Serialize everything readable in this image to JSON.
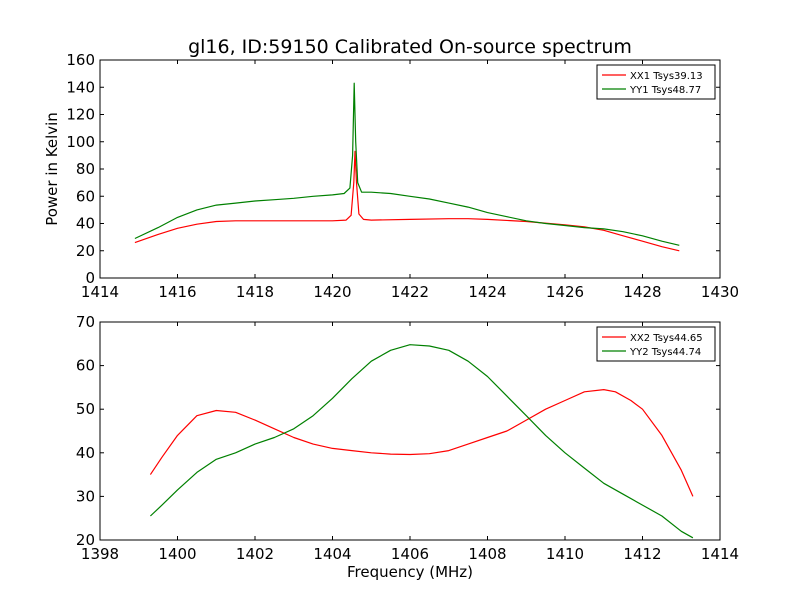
{
  "title": "gl16, ID:59150 Calibrated On-source spectrum",
  "chart_data": [
    {
      "type": "line",
      "title": "gl16, ID:59150 Calibrated On-source spectrum",
      "xlabel": "",
      "ylabel": "Power in Kelvin",
      "xlim": [
        1414,
        1430
      ],
      "ylim": [
        0,
        160
      ],
      "xticks": [
        1414,
        1416,
        1418,
        1420,
        1422,
        1424,
        1426,
        1428,
        1430
      ],
      "yticks": [
        0,
        20,
        40,
        60,
        80,
        100,
        120,
        140,
        160
      ],
      "grid": false,
      "legend_position": "top-right",
      "series": [
        {
          "name": "XX1 Tsys39.13",
          "color": "#ff0000",
          "points": [
            [
              1414.9,
              26
            ],
            [
              1415.5,
              32
            ],
            [
              1416,
              36.5
            ],
            [
              1416.5,
              39.5
            ],
            [
              1417,
              41.5
            ],
            [
              1417.5,
              42
            ],
            [
              1418,
              42
            ],
            [
              1419,
              42
            ],
            [
              1420,
              42
            ],
            [
              1420.35,
              42.5
            ],
            [
              1420.48,
              46
            ],
            [
              1420.55,
              70
            ],
            [
              1420.58,
              93
            ],
            [
              1420.62,
              70
            ],
            [
              1420.68,
              47
            ],
            [
              1420.8,
              43
            ],
            [
              1421,
              42.5
            ],
            [
              1422,
              43
            ],
            [
              1423,
              43.5
            ],
            [
              1423.5,
              43.5
            ],
            [
              1424,
              43
            ],
            [
              1425,
              41.5
            ],
            [
              1426,
              39
            ],
            [
              1426.5,
              37.5
            ],
            [
              1427,
              35
            ],
            [
              1427.5,
              31
            ],
            [
              1428,
              27
            ],
            [
              1428.5,
              23
            ],
            [
              1428.95,
              20
            ]
          ]
        },
        {
          "name": "YY1 Tsys48.77",
          "color": "#008000",
          "points": [
            [
              1414.9,
              29
            ],
            [
              1415.5,
              37
            ],
            [
              1416,
              44.5
            ],
            [
              1416.5,
              50
            ],
            [
              1417,
              53.5
            ],
            [
              1417.5,
              55
            ],
            [
              1418,
              56.5
            ],
            [
              1418.5,
              57.5
            ],
            [
              1419,
              58.5
            ],
            [
              1419.5,
              60
            ],
            [
              1420,
              61
            ],
            [
              1420.3,
              62
            ],
            [
              1420.45,
              66
            ],
            [
              1420.52,
              90
            ],
            [
              1420.56,
              143
            ],
            [
              1420.6,
              100
            ],
            [
              1420.65,
              70
            ],
            [
              1420.75,
              63
            ],
            [
              1421,
              63
            ],
            [
              1421.5,
              62
            ],
            [
              1422,
              60
            ],
            [
              1422.5,
              58
            ],
            [
              1423,
              55
            ],
            [
              1423.5,
              52
            ],
            [
              1424,
              48
            ],
            [
              1424.5,
              45
            ],
            [
              1425,
              42
            ],
            [
              1425.5,
              40
            ],
            [
              1426,
              38.5
            ],
            [
              1426.5,
              37
            ],
            [
              1427,
              36
            ],
            [
              1427.5,
              34
            ],
            [
              1428,
              31
            ],
            [
              1428.5,
              27
            ],
            [
              1428.95,
              24
            ]
          ]
        }
      ]
    },
    {
      "type": "line",
      "title": "",
      "xlabel": "Frequency (MHz)",
      "ylabel": "",
      "xlim": [
        1398,
        1414
      ],
      "ylim": [
        20,
        70
      ],
      "xticks": [
        1398,
        1400,
        1402,
        1404,
        1406,
        1408,
        1410,
        1412,
        1414
      ],
      "yticks": [
        20,
        30,
        40,
        50,
        60,
        70
      ],
      "grid": false,
      "legend_position": "top-right",
      "series": [
        {
          "name": "XX2 Tsys44.65",
          "color": "#ff0000",
          "points": [
            [
              1399.3,
              35
            ],
            [
              1399.6,
              39
            ],
            [
              1400,
              44
            ],
            [
              1400.5,
              48.5
            ],
            [
              1401,
              49.7
            ],
            [
              1401.5,
              49.3
            ],
            [
              1402,
              47.5
            ],
            [
              1402.5,
              45.5
            ],
            [
              1403,
              43.5
            ],
            [
              1403.5,
              42
            ],
            [
              1404,
              41
            ],
            [
              1404.5,
              40.5
            ],
            [
              1405,
              40
            ],
            [
              1405.5,
              39.7
            ],
            [
              1406,
              39.6
            ],
            [
              1406.5,
              39.8
            ],
            [
              1407,
              40.5
            ],
            [
              1407.5,
              42
            ],
            [
              1408,
              43.5
            ],
            [
              1408.5,
              45
            ],
            [
              1409,
              47.5
            ],
            [
              1409.5,
              50
            ],
            [
              1410,
              52
            ],
            [
              1410.5,
              54
            ],
            [
              1411,
              54.5
            ],
            [
              1411.3,
              54
            ],
            [
              1411.7,
              52
            ],
            [
              1412,
              50
            ],
            [
              1412.5,
              44
            ],
            [
              1413,
              36
            ],
            [
              1413.3,
              30
            ]
          ]
        },
        {
          "name": "YY2 Tsys44.74",
          "color": "#008000",
          "points": [
            [
              1399.3,
              25.5
            ],
            [
              1399.6,
              28
            ],
            [
              1400,
              31.5
            ],
            [
              1400.5,
              35.5
            ],
            [
              1401,
              38.5
            ],
            [
              1401.5,
              40
            ],
            [
              1402,
              42
            ],
            [
              1402.5,
              43.5
            ],
            [
              1403,
              45.5
            ],
            [
              1403.5,
              48.5
            ],
            [
              1404,
              52.5
            ],
            [
              1404.5,
              57
            ],
            [
              1405,
              61
            ],
            [
              1405.5,
              63.5
            ],
            [
              1406,
              64.8
            ],
            [
              1406.5,
              64.5
            ],
            [
              1407,
              63.5
            ],
            [
              1407.5,
              61
            ],
            [
              1408,
              57.5
            ],
            [
              1408.5,
              53
            ],
            [
              1409,
              48.5
            ],
            [
              1409.5,
              44
            ],
            [
              1410,
              40
            ],
            [
              1410.5,
              36.5
            ],
            [
              1411,
              33
            ],
            [
              1411.5,
              30.5
            ],
            [
              1412,
              28
            ],
            [
              1412.5,
              25.5
            ],
            [
              1413,
              22
            ],
            [
              1413.3,
              20.5
            ]
          ]
        }
      ]
    }
  ]
}
